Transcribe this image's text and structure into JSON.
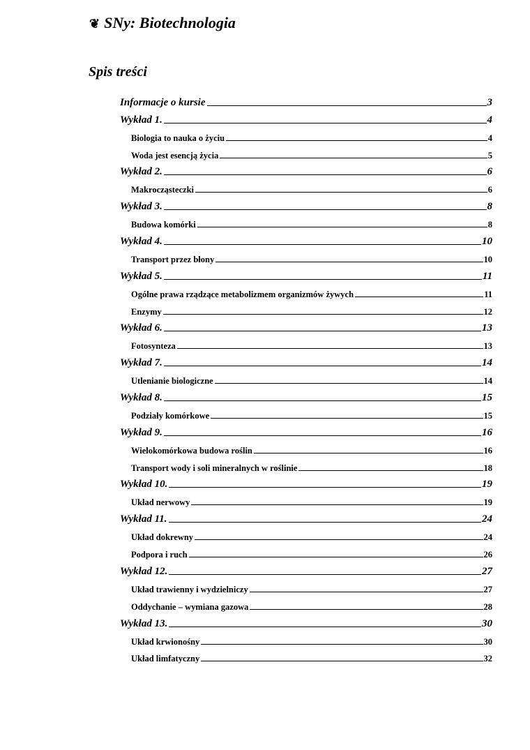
{
  "header": {
    "ornament_icon": "floral-ornament-icon",
    "title": "SNy: Biotechnologia"
  },
  "toc": {
    "title": "Spis treści",
    "entries": [
      {
        "level": 1,
        "label": "Informacje o kursie",
        "page": "3"
      },
      {
        "level": 1,
        "label": "Wykład 1.",
        "page": "4"
      },
      {
        "level": 2,
        "label": "Biologia to nauka o życiu",
        "page": "4"
      },
      {
        "level": 2,
        "label": "Woda jest esencją życia",
        "page": "5"
      },
      {
        "level": 1,
        "label": "Wykład 2.",
        "page": "6"
      },
      {
        "level": 2,
        "label": "Makrocząsteczki",
        "page": "6"
      },
      {
        "level": 1,
        "label": "Wykład 3.",
        "page": "8"
      },
      {
        "level": 2,
        "label": "Budowa komórki",
        "page": "8"
      },
      {
        "level": 1,
        "label": "Wykład 4.",
        "page": "10"
      },
      {
        "level": 2,
        "label": "Transport przez błony",
        "page": "10"
      },
      {
        "level": 1,
        "label": "Wykład 5.",
        "page": "11"
      },
      {
        "level": 2,
        "label": "Ogólne prawa rządzące metabolizmem organizmów żywych",
        "page": "11"
      },
      {
        "level": 2,
        "label": "Enzymy",
        "page": "12"
      },
      {
        "level": 1,
        "label": "Wykład 6.",
        "page": "13"
      },
      {
        "level": 2,
        "label": "Fotosynteza",
        "page": "13"
      },
      {
        "level": 1,
        "label": "Wykład 7.",
        "page": "14"
      },
      {
        "level": 2,
        "label": "Utlenianie biologiczne",
        "page": "14"
      },
      {
        "level": 1,
        "label": "Wykład 8.",
        "page": "15"
      },
      {
        "level": 2,
        "label": "Podziały komórkowe",
        "page": "15"
      },
      {
        "level": 1,
        "label": "Wykład 9.",
        "page": "16"
      },
      {
        "level": 2,
        "label": "Wielokomórkowa budowa roślin",
        "page": "16"
      },
      {
        "level": 2,
        "label": "Transport wody i soli mineralnych w roślinie",
        "page": "18"
      },
      {
        "level": 1,
        "label": "Wykład 10.",
        "page": "19"
      },
      {
        "level": 2,
        "label": "Układ nerwowy",
        "page": "19"
      },
      {
        "level": 1,
        "label": "Wykład 11.",
        "page": "24"
      },
      {
        "level": 2,
        "label": "Układ dokrewny",
        "page": "24"
      },
      {
        "level": 2,
        "label": "Podpora i ruch",
        "page": "26"
      },
      {
        "level": 1,
        "label": "Wykład 12.",
        "page": "27"
      },
      {
        "level": 2,
        "label": "Układ trawienny i wydzielniczy",
        "page": "27"
      },
      {
        "level": 2,
        "label": "Oddychanie – wymiana gazowa",
        "page": "28"
      },
      {
        "level": 1,
        "label": "Wykład 13.",
        "page": "30"
      },
      {
        "level": 2,
        "label": "Układ krwionośny",
        "page": "30"
      },
      {
        "level": 2,
        "label": "Układ limfatyczny",
        "page": "32"
      }
    ]
  }
}
